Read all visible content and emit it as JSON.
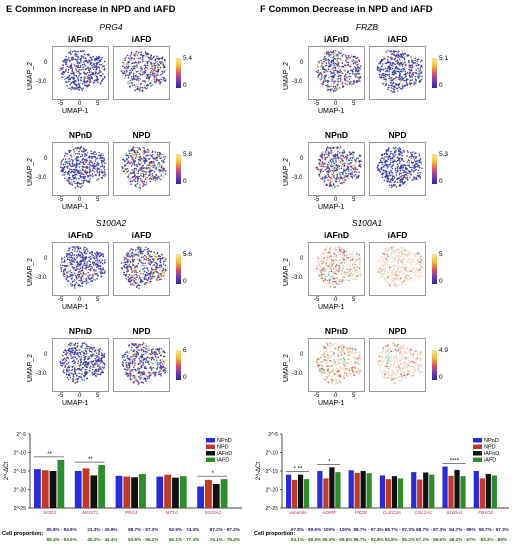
{
  "panels": [
    {
      "id": "E",
      "title": "E   Common increase in NPD and iAFD",
      "genes": [
        {
          "name": "PRG4",
          "rows": [
            {
              "conds": [
                "iAFnD",
                "iAFD"
              ],
              "cmax": "5.4",
              "cmin": "0"
            },
            {
              "conds": [
                "NPnD",
                "NPD"
              ],
              "cmax": "5.8",
              "cmin": "0"
            }
          ]
        },
        {
          "name": "S100A2",
          "rows": [
            {
              "conds": [
                "iAFnD",
                "iAFD"
              ],
              "cmax": "5.6",
              "cmin": "0"
            },
            {
              "conds": [
                "NPnD",
                "NPD"
              ],
              "cmax": "6",
              "cmin": "0"
            }
          ]
        }
      ]
    },
    {
      "id": "F",
      "title": "F   Common Decrease in NPD and iAFD",
      "genes": [
        {
          "name": "FRZB",
          "rows": [
            {
              "conds": [
                "iAFnD",
                "iAFD"
              ],
              "cmax": "5.1",
              "cmin": "0"
            },
            {
              "conds": [
                "NPnD",
                "NPD"
              ],
              "cmax": "5.3",
              "cmin": "0"
            }
          ]
        },
        {
          "name": "S100A1",
          "rows": [
            {
              "conds": [
                "iAFnD",
                "iAFD"
              ],
              "cmax": "5",
              "cmin": "0"
            },
            {
              "conds": [
                "NPnD",
                "NPD"
              ],
              "cmax": "4.9",
              "cmin": "0"
            }
          ]
        }
      ]
    }
  ],
  "axes": {
    "ylabel": "UMAP_2",
    "xlabel": "UMAP-1",
    "yticks": [
      "0",
      "-3.0"
    ],
    "xticks": [
      "-5",
      "0",
      "5"
    ]
  },
  "colors": {
    "NPnD": "#2b2bd6",
    "NPD": "#c0392b",
    "iAFnD": "#111111",
    "iAFD": "#2e8b2e",
    "umap_low": "#3d3da8",
    "umap_high": "#e8c14a"
  },
  "chart_data": [
    {
      "type": "bar",
      "ylabel": "2^-ΔCt",
      "yticks": [
        "2^-5",
        "2^-10",
        "2^-15",
        "2^-20",
        "2^-25"
      ],
      "legend": [
        "NPnD",
        "NPD",
        "iAFnD",
        "iAFD"
      ],
      "legend_position": "top-right",
      "categories": [
        "SOD3",
        "MGST1",
        "PRG4",
        "MT1G",
        "S100A2"
      ],
      "series": [
        {
          "name": "NPnD",
          "values": [
            -14.5,
            -15.0,
            -16.3,
            -16.5,
            -19.2
          ]
        },
        {
          "name": "NPD",
          "values": [
            -14.8,
            -14.3,
            -16.5,
            -16.0,
            -17.4
          ]
        },
        {
          "name": "iAFnD",
          "values": [
            -15.0,
            -16.2,
            -16.7,
            -16.8,
            -18.5
          ]
        },
        {
          "name": "iAFD",
          "values": [
            -12.0,
            -13.4,
            -15.8,
            -16.4,
            -17.2
          ]
        }
      ],
      "significance": [
        "**",
        "**",
        "",
        "",
        "*"
      ],
      "proportion_label": "Cell proportion:",
      "proportions_row1": [
        "95.8% - 94.9%",
        "21.3% - 26.9%",
        "98.7% - 97.3%",
        "62.9% - 74.3%",
        "87.2% - 87.2%"
      ],
      "proportions_row2": [
        "88.4% - 93.6%",
        "40.2% - 44.4%",
        "93.8% - 95.2%",
        "80.1% - 77.4%",
        "76.1% - 79.4%"
      ]
    },
    {
      "type": "bar",
      "ylabel": "2^-ΔCt",
      "yticks": [
        "2^-5",
        "2^-10",
        "2^-15",
        "2^-20",
        "2^-25"
      ],
      "legend": [
        "NPnD",
        "NPD",
        "iAFnD",
        "iAFD"
      ],
      "legend_position": "top-right",
      "categories": [
        "vimentin",
        "ADIRF",
        "FRZB",
        "CLEC3A",
        "COL2A1",
        "S100A1",
        "FBXO2"
      ],
      "series": [
        {
          "name": "NPnD",
          "values": [
            -16.0,
            -15.0,
            -14.8,
            -16.2,
            -15.3,
            -13.8,
            -15.0
          ]
        },
        {
          "name": "NPD",
          "values": [
            -17.4,
            -17.0,
            -15.5,
            -17.2,
            -17.3,
            -16.3,
            -17.0
          ]
        },
        {
          "name": "iAFnD",
          "values": [
            -16.0,
            -14.0,
            -15.0,
            -16.4,
            -15.4,
            -14.7,
            -15.8
          ]
        },
        {
          "name": "iAFD",
          "values": [
            -17.2,
            -15.3,
            -15.6,
            -17.0,
            -16.0,
            -16.4,
            -16.2
          ]
        }
      ],
      "significance": [
        "* **",
        "*",
        "",
        "",
        "",
        "****",
        ""
      ],
      "proportion_label": "Cell proportion:",
      "proportions_row1": [
        "97.8% - 89.6%",
        "100% - 100%",
        "98.7% - 97.3%",
        "98.7% - 97.3%",
        "98.7% - 97.3%",
        "94.7% - 89%",
        "98.7% - 97.3%"
      ],
      "proportions_row2": [
        "94.1% - 89.9%",
        "99.3% - 99.6%",
        "96.7% - 93.8%",
        "93.8% - 95.2%",
        "97.2% - 96.6%",
        "48.2% - 57%",
        "83.3% - 89%"
      ]
    }
  ]
}
